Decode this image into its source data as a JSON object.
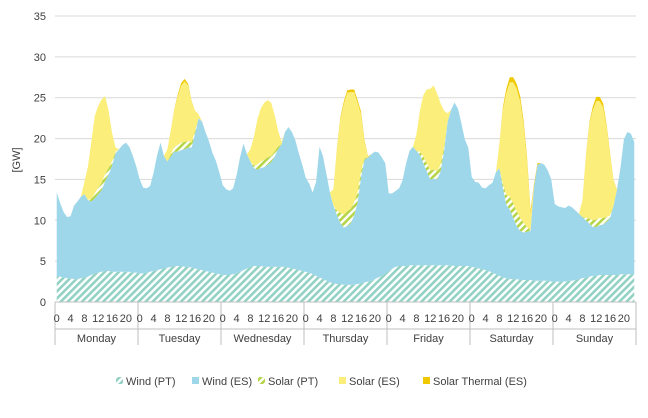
{
  "chart_data": {
    "type": "area",
    "stacked": true,
    "ylabel": "[GW]",
    "ylim": [
      0,
      35
    ],
    "yticks": [
      0,
      5,
      10,
      15,
      20,
      25,
      30,
      35
    ],
    "grid": true,
    "legend_position": "bottom",
    "hour_labels": [
      "0",
      "4",
      "8",
      "12",
      "16",
      "20"
    ],
    "days": [
      "Monday",
      "Tuesday",
      "Wednesday",
      "Thursday",
      "Friday",
      "Saturday",
      "Sunday"
    ],
    "x_note": "hourly values, hours 0-23 for each day Monday to Sunday",
    "series": [
      {
        "name": "Wind (PT)",
        "color": "#92d2c4",
        "pattern": "hatch",
        "values": [
          3.2,
          3.1,
          3.0,
          2.9,
          2.9,
          2.8,
          2.8,
          2.9,
          3.0,
          3.1,
          3.3,
          3.5,
          3.6,
          3.7,
          3.8,
          3.8,
          3.7,
          3.7,
          3.7,
          3.7,
          3.7,
          3.7,
          3.6,
          3.6,
          3.5,
          3.5,
          3.6,
          3.7,
          3.8,
          3.9,
          4.0,
          4.1,
          4.2,
          4.3,
          4.4,
          4.4,
          4.4,
          4.3,
          4.3,
          4.2,
          4.1,
          4.0,
          3.9,
          3.8,
          3.7,
          3.6,
          3.5,
          3.4,
          3.3,
          3.3,
          3.3,
          3.4,
          3.5,
          3.7,
          3.9,
          4.1,
          4.3,
          4.4,
          4.4,
          4.4,
          4.3,
          4.3,
          4.3,
          4.3,
          4.3,
          4.3,
          4.3,
          4.2,
          4.1,
          4.0,
          3.9,
          3.8,
          3.7,
          3.6,
          3.4,
          3.2,
          3.0,
          2.8,
          2.6,
          2.4,
          2.3,
          2.2,
          2.2,
          2.1,
          2.1,
          2.1,
          2.1,
          2.2,
          2.3,
          2.4,
          2.5,
          2.6,
          2.8,
          3.0,
          3.2,
          3.5,
          3.8,
          4.1,
          4.3,
          4.4,
          4.4,
          4.4,
          4.5,
          4.5,
          4.5,
          4.5,
          4.5,
          4.5,
          4.5,
          4.5,
          4.5,
          4.5,
          4.5,
          4.5,
          4.5,
          4.4,
          4.4,
          4.4,
          4.4,
          4.4,
          4.3,
          4.2,
          4.1,
          4.0,
          3.9,
          3.8,
          3.6,
          3.4,
          3.2,
          3.0,
          2.9,
          2.8,
          2.8,
          2.8,
          2.7,
          2.7,
          2.7,
          2.7,
          2.6,
          2.6,
          2.6,
          2.6,
          2.6,
          2.5,
          2.5,
          2.5,
          2.5,
          2.5,
          2.6,
          2.6,
          2.7,
          2.8,
          2.9,
          3.0,
          3.1,
          3.2,
          3.2,
          3.3,
          3.3,
          3.3,
          3.3,
          3.3,
          3.3,
          3.4,
          3.4,
          3.4,
          3.4,
          3.4
        ]
      },
      {
        "name": "Wind (ES)",
        "color": "#9ed7ea",
        "pattern": "solid",
        "values": [
          10.2,
          9.0,
          8.0,
          7.5,
          7.6,
          9.0,
          9.5,
          10.0,
          10.2,
          9.4,
          9.0,
          9.2,
          9.6,
          10.0,
          11.0,
          11.8,
          13.0,
          14.5,
          15.0,
          15.5,
          15.8,
          15.3,
          14.3,
          13.0,
          11.5,
          10.5,
          10.3,
          10.5,
          12.0,
          14.0,
          15.5,
          13.8,
          13.0,
          13.5,
          14.0,
          14.0,
          14.2,
          14.4,
          14.6,
          14.7,
          16.5,
          18.5,
          18.2,
          17.0,
          16.0,
          14.7,
          13.8,
          12.5,
          11.0,
          10.5,
          10.3,
          10.5,
          12.0,
          14.0,
          15.5,
          14.0,
          12.9,
          12.0,
          11.8,
          12.0,
          12.2,
          12.5,
          12.8,
          13.5,
          14.4,
          15.0,
          16.5,
          17.2,
          16.7,
          15.8,
          14.3,
          13.0,
          11.5,
          10.9,
          10.0,
          11.5,
          16.0,
          15.0,
          13.0,
          11.0,
          9.5,
          8.5,
          7.5,
          7.0,
          7.2,
          7.5,
          8.5,
          10.0,
          13.0,
          15.0,
          15.2,
          15.5,
          15.6,
          15.3,
          14.5,
          13.5,
          9.5,
          9.2,
          9.3,
          9.5,
          10.5,
          12.5,
          14.0,
          14.5,
          14.0,
          13.5,
          12.5,
          11.5,
          10.5,
          10.6,
          10.5,
          11.5,
          14.0,
          17.5,
          19.0,
          20.0,
          19.3,
          17.5,
          15.5,
          14.5,
          11.0,
          10.5,
          10.5,
          10.0,
          10.0,
          10.5,
          11.0,
          12.5,
          13.2,
          11.0,
          9.0,
          8.5,
          7.5,
          6.5,
          6.0,
          5.8,
          5.9,
          6.0,
          11.5,
          14.2,
          14.4,
          14.2,
          13.5,
          12.5,
          9.5,
          9.2,
          9.1,
          9.0,
          9.2,
          9.0,
          8.5,
          8.0,
          7.5,
          7.0,
          6.5,
          6.0,
          6.0,
          6.1,
          6.2,
          6.5,
          7.0,
          8.5,
          10.5,
          13.0,
          16.5,
          17.4,
          17.2,
          16.2
        ]
      },
      {
        "name": "Solar (PT)",
        "color": "#b5d548",
        "pattern": "hatch",
        "values": [
          0,
          0,
          0,
          0,
          0,
          0,
          0,
          0,
          0,
          0,
          0.3,
          0.6,
          0.8,
          0.9,
          0.9,
          0.8,
          0.5,
          0.2,
          0,
          0,
          0,
          0,
          0,
          0,
          0,
          0,
          0,
          0,
          0,
          0,
          0,
          0,
          0,
          0.3,
          0.6,
          0.8,
          0.9,
          0.9,
          0.8,
          0.6,
          0.3,
          0,
          0,
          0,
          0,
          0,
          0,
          0,
          0,
          0,
          0,
          0,
          0,
          0,
          0,
          0,
          0,
          0.3,
          0.6,
          0.8,
          0.9,
          0.9,
          0.8,
          0.6,
          0.3,
          0,
          0,
          0,
          0,
          0,
          0,
          0,
          0,
          0,
          0,
          0,
          0,
          0,
          0,
          0,
          0,
          0.5,
          1.2,
          1.6,
          1.8,
          1.8,
          1.6,
          1.2,
          0.7,
          0.2,
          0,
          0,
          0,
          0,
          0,
          0,
          0,
          0,
          0,
          0,
          0,
          0,
          0,
          0,
          0,
          0.4,
          0.8,
          1.0,
          1.1,
          1.1,
          1.0,
          0.8,
          0.4,
          0.1,
          0,
          0,
          0,
          0,
          0,
          0,
          0,
          0,
          0,
          0,
          0,
          0,
          0,
          0,
          0,
          0.5,
          1.2,
          1.6,
          1.8,
          1.8,
          1.6,
          1.2,
          0.6,
          0.1,
          0,
          0,
          0,
          0,
          0,
          0,
          0,
          0,
          0,
          0,
          0,
          0,
          0,
          0,
          0,
          0.3,
          0.6,
          0.8,
          0.9,
          0.9,
          0.8,
          0.6,
          0.3,
          0,
          0,
          0,
          0,
          0,
          0,
          0
        ]
      },
      {
        "name": "Solar (ES)",
        "color": "#fbee7a",
        "pattern": "solid",
        "values": [
          0,
          0,
          0,
          0,
          0,
          0,
          0,
          0,
          1.5,
          4.0,
          7.0,
          9.5,
          10.0,
          10.2,
          9.5,
          7.0,
          3.5,
          0.5,
          0,
          0,
          0,
          0,
          0,
          0,
          0,
          0,
          0,
          0,
          0,
          0,
          0,
          0,
          1.5,
          3.0,
          4.5,
          6.0,
          7.0,
          7.4,
          6.8,
          5.0,
          2.5,
          0.5,
          0,
          0,
          0,
          0,
          0,
          0,
          0,
          0,
          0,
          0,
          0,
          0,
          0,
          0,
          1.5,
          3.5,
          5.5,
          6.5,
          7.0,
          7.0,
          6.5,
          4.5,
          2.0,
          0.3,
          0,
          0,
          0,
          0,
          0,
          0,
          0,
          0,
          0,
          0,
          0,
          0,
          0,
          0,
          2.0,
          7.5,
          11.5,
          13.5,
          14.5,
          14.3,
          13.5,
          11.0,
          7.0,
          2.0,
          0,
          0,
          0,
          0,
          0,
          0,
          0,
          0,
          0,
          0,
          0,
          0,
          0,
          0,
          2.0,
          5.0,
          7.5,
          9.0,
          10.0,
          10.3,
          9.5,
          7.5,
          4.5,
          1.0,
          0,
          0,
          0,
          0,
          0,
          0,
          0,
          0,
          0,
          0,
          0,
          0,
          0,
          0,
          3.0,
          9.0,
          12.5,
          14.0,
          14.8,
          15.0,
          14.3,
          12.0,
          8.0,
          2.0,
          0,
          0,
          0,
          0,
          0,
          0,
          0,
          0,
          0,
          0,
          0,
          0,
          0,
          0,
          2.0,
          7.5,
          11.5,
          13.5,
          14.5,
          14.3,
          13.5,
          11.0,
          7.5,
          3.0,
          0,
          0,
          0,
          0,
          0,
          0
        ]
      },
      {
        "name": "Solar Thermal (ES)",
        "color": "#f0c800",
        "pattern": "solid",
        "values": [
          0,
          0,
          0,
          0,
          0,
          0,
          0,
          0,
          0,
          0,
          0,
          0,
          0,
          0,
          0,
          0,
          0,
          0,
          0,
          0,
          0,
          0,
          0,
          0,
          0,
          0,
          0,
          0,
          0,
          0,
          0,
          0,
          0,
          0,
          0.1,
          0.2,
          0.3,
          0.3,
          0.2,
          0.1,
          0,
          0,
          0,
          0,
          0,
          0,
          0,
          0,
          0,
          0,
          0,
          0,
          0,
          0,
          0,
          0,
          0,
          0,
          0,
          0,
          0,
          0,
          0,
          0,
          0,
          0,
          0,
          0,
          0,
          0,
          0,
          0,
          0,
          0,
          0,
          0,
          0,
          0,
          0,
          0,
          0,
          0.1,
          0.2,
          0.3,
          0.3,
          0.3,
          0.3,
          0.3,
          0.3,
          0.2,
          0.1,
          0,
          0,
          0,
          0,
          0,
          0,
          0,
          0,
          0,
          0,
          0,
          0,
          0,
          0,
          0,
          0,
          0,
          0,
          0,
          0,
          0,
          0,
          0,
          0,
          0,
          0,
          0,
          0,
          0,
          0,
          0,
          0,
          0,
          0,
          0,
          0,
          0,
          0,
          0.3,
          0.5,
          0.6,
          0.6,
          0.6,
          0.6,
          0.5,
          0.5,
          0.4,
          0.3,
          0.2,
          0,
          0,
          0,
          0,
          0,
          0,
          0,
          0,
          0,
          0,
          0,
          0,
          0,
          0.1,
          0.2,
          0.4,
          0.5,
          0.5,
          0.5,
          0.3,
          0.2,
          0.1,
          0,
          0,
          0,
          0,
          0,
          0
        ]
      }
    ]
  }
}
